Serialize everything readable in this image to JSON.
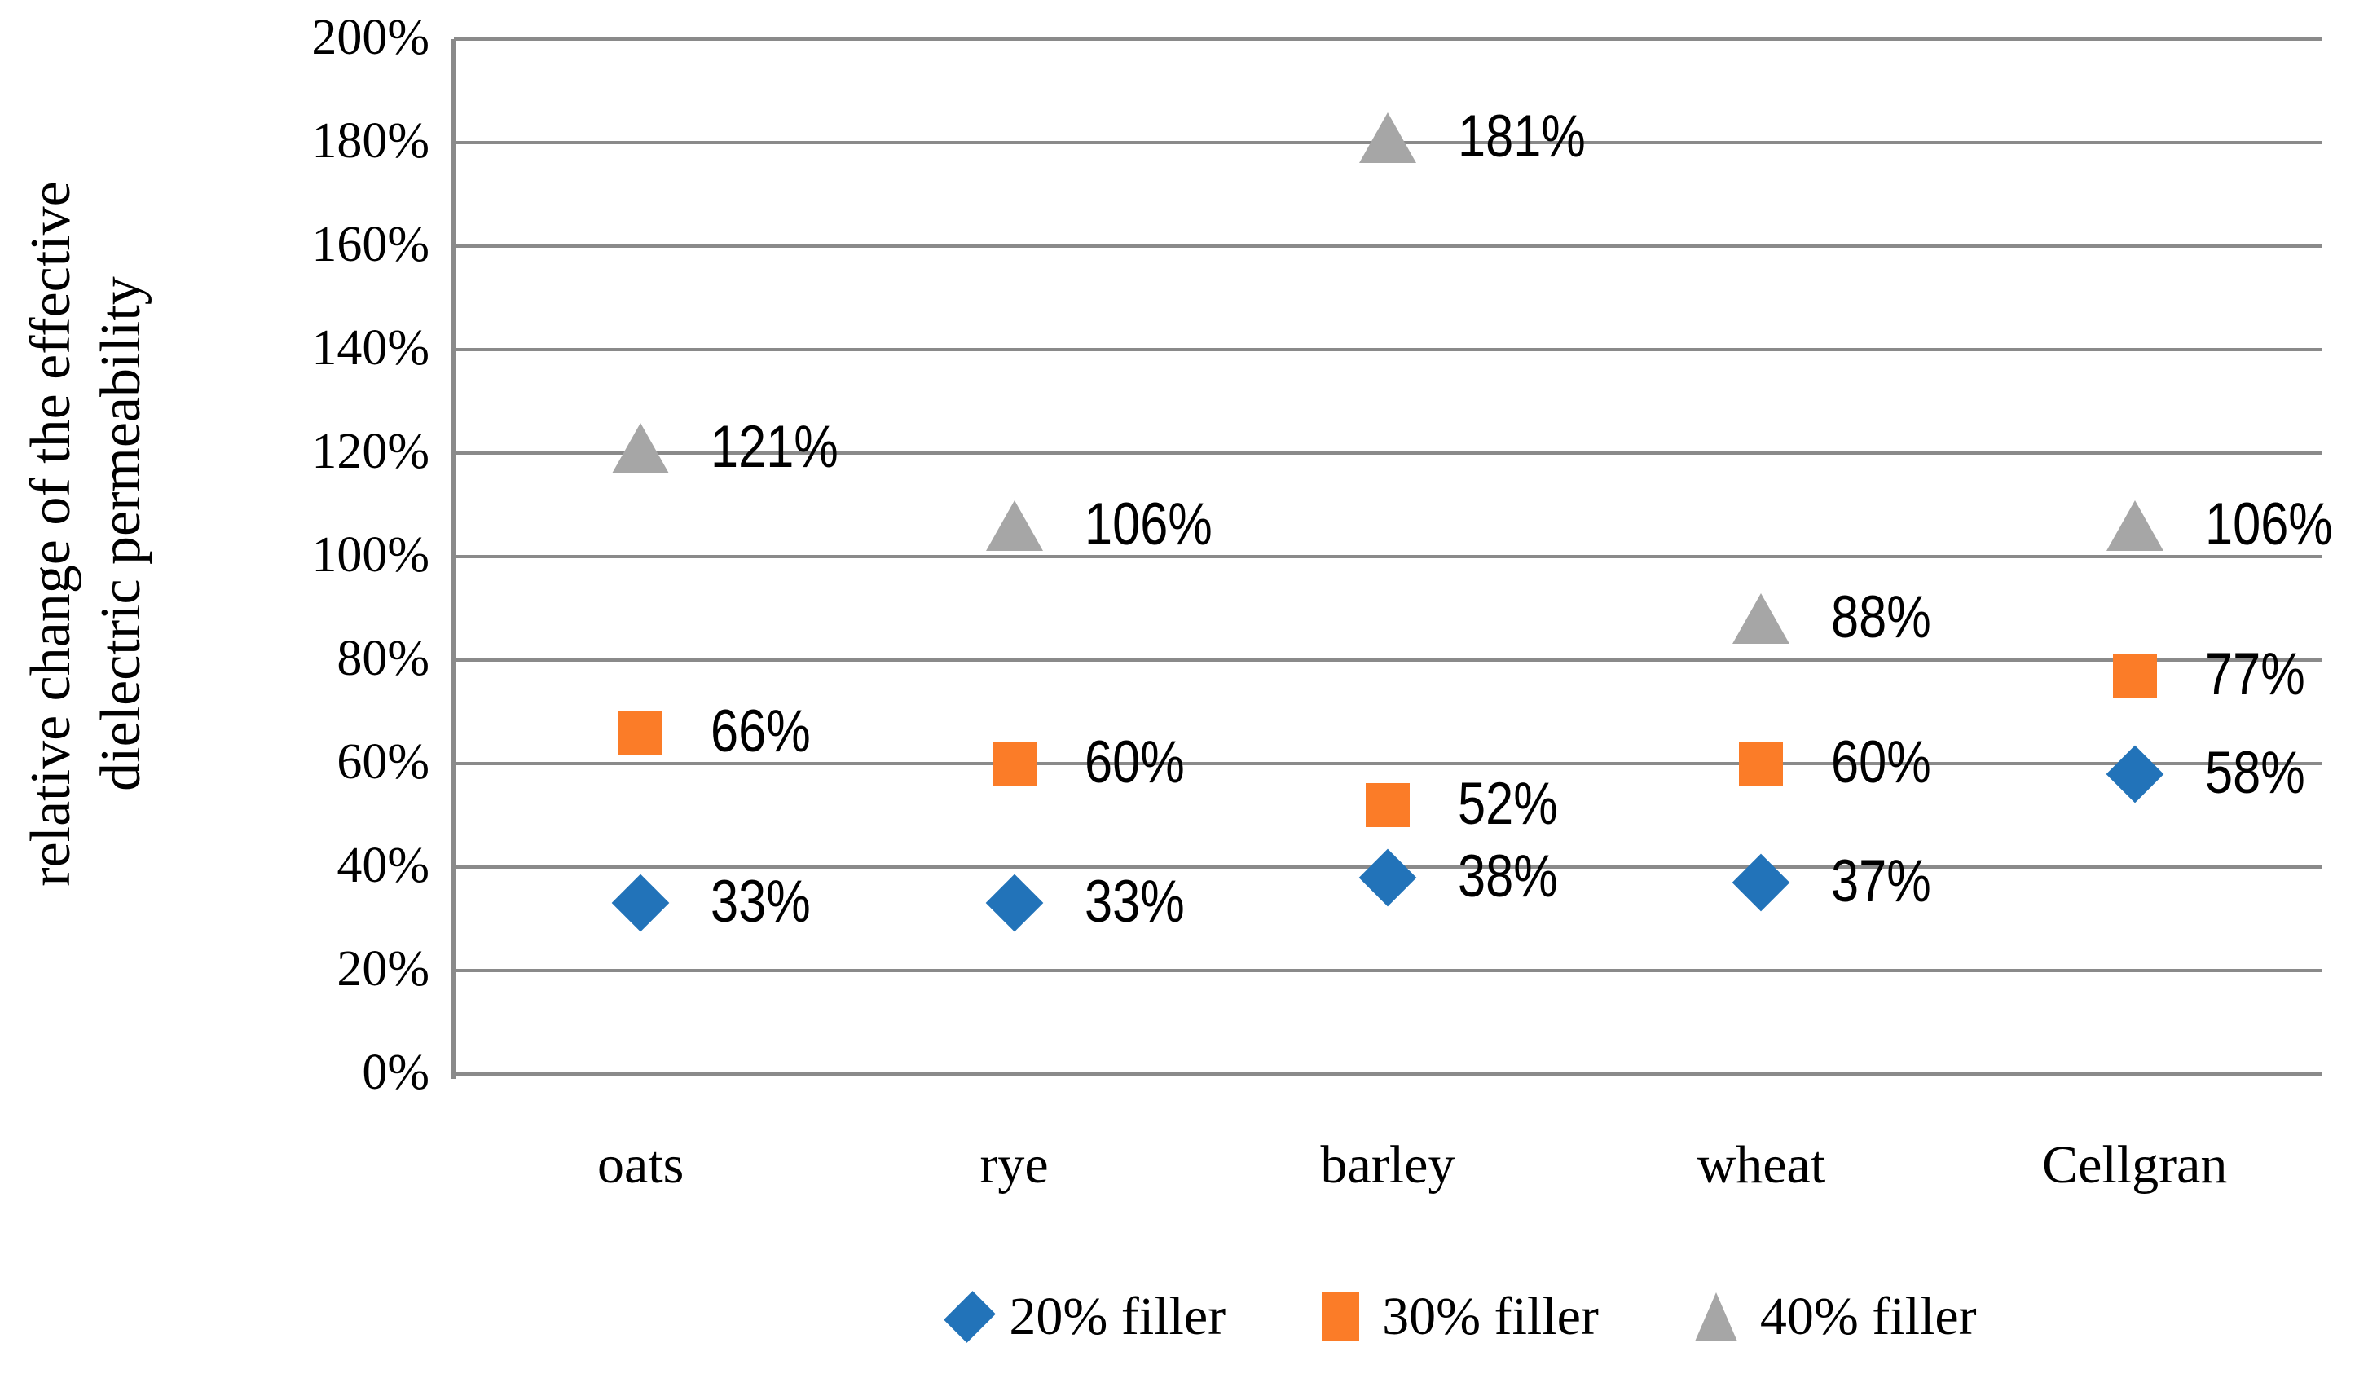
{
  "chart_data": {
    "type": "scatter",
    "title": "",
    "ylabel_lines": [
      "relative change of the effective",
      "dielectric permeability"
    ],
    "ylabel": "relative change of the effective dielectric permeability",
    "categories": [
      "oats",
      "rye",
      "barley",
      "wheat",
      "Cellgran"
    ],
    "series": [
      {
        "name": "20% filler",
        "marker": "diamond",
        "color": "#2273B9",
        "values": [
          33,
          33,
          38,
          37,
          58
        ],
        "data_labels": [
          "33%",
          "33%",
          "38%",
          "37%",
          "58%"
        ]
      },
      {
        "name": "30% filler",
        "marker": "square",
        "color": "#FB7C28",
        "values": [
          66,
          60,
          52,
          60,
          77
        ],
        "data_labels": [
          "66%",
          "60%",
          "52%",
          "60%",
          "77%"
        ]
      },
      {
        "name": "40% filler",
        "marker": "triangle",
        "color": "#A6A6A6",
        "values": [
          121,
          106,
          181,
          88,
          106
        ],
        "data_labels": [
          "121%",
          "106%",
          "181%",
          "88%",
          "106%"
        ]
      }
    ],
    "y_axis": {
      "min": 0,
      "max": 200,
      "step": 20,
      "tick_labels": [
        "0%",
        "20%",
        "40%",
        "60%",
        "80%",
        "100%",
        "120%",
        "140%",
        "160%",
        "180%",
        "200%"
      ]
    },
    "xlabel": "",
    "grid": true,
    "legend_position": "bottom",
    "colors": {
      "gridline": "#8A8A8A",
      "axis": "#8A8A8A",
      "text": "#000000",
      "background": "#FFFFFF"
    }
  }
}
